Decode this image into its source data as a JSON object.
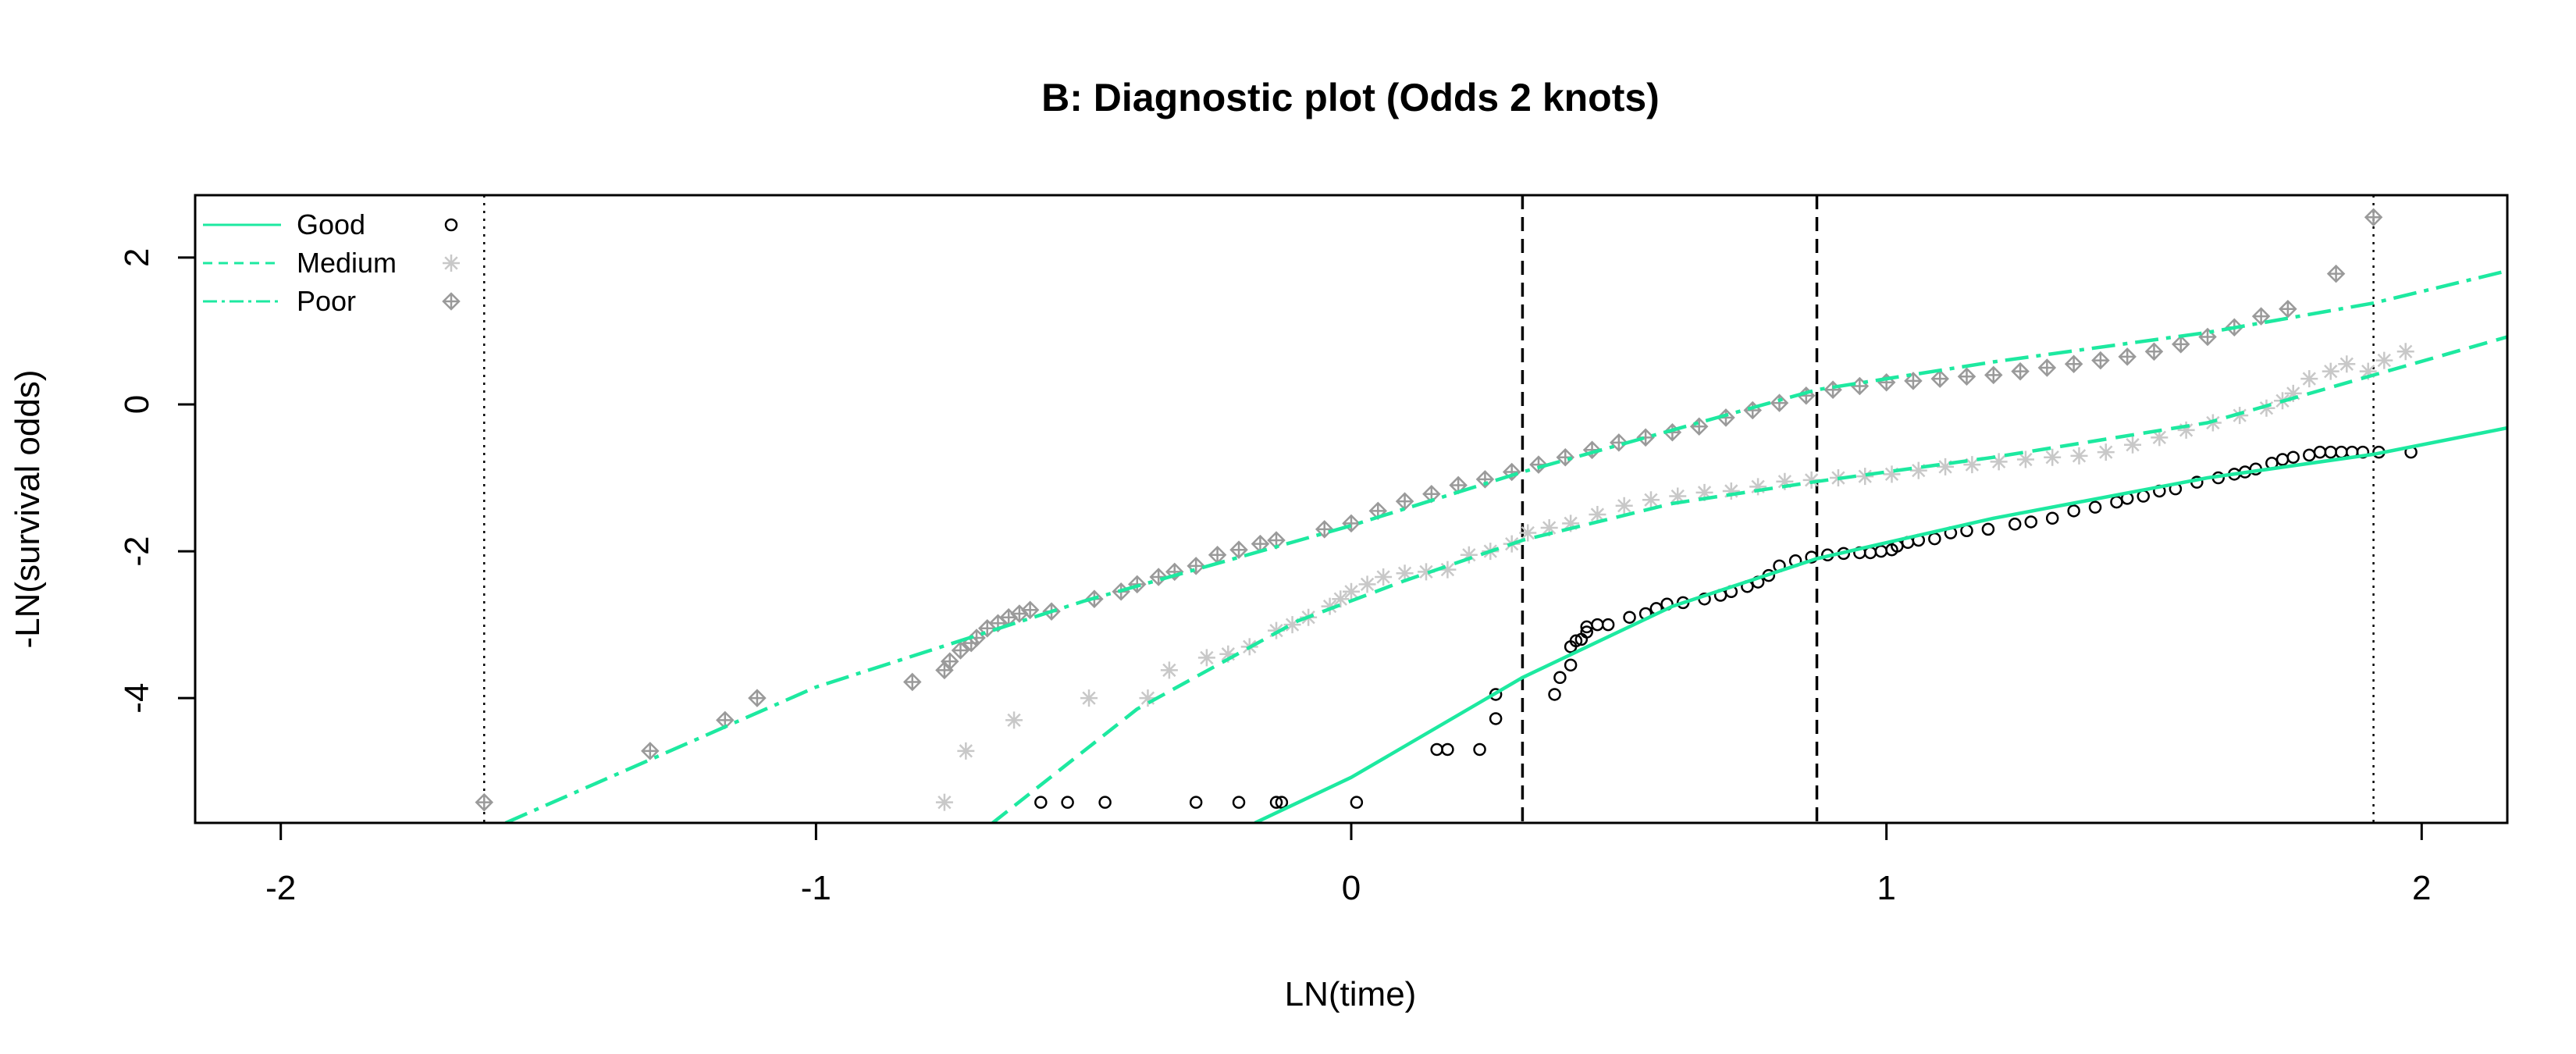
{
  "chart_data": {
    "type": "scatter",
    "title": "B: Diagnostic plot (Odds 2 knots)",
    "xlabel": "LN(time)",
    "ylabel": "-LN(survival odds)",
    "xlim": [
      -2.16,
      2.16
    ],
    "ylim": [
      -5.7,
      2.85
    ],
    "x_ticks": [
      -2,
      -1,
      0,
      1,
      2
    ],
    "y_ticks": [
      -4,
      -2,
      0,
      2
    ],
    "grid": false,
    "legend_position": "top-left",
    "curve_color": "#1de9a0",
    "knots_dashed": [
      0.32,
      0.87
    ],
    "bounds_dotted": [
      -1.62,
      1.91
    ],
    "series": [
      {
        "name": "Good",
        "line_style": "solid",
        "marker": "circle",
        "marker_color": "#000000",
        "curve": [
          [
            -0.18,
            -5.7
          ],
          [
            0,
            -5.08
          ],
          [
            0.32,
            -3.72
          ],
          [
            0.6,
            -2.75
          ],
          [
            0.87,
            -2.1
          ],
          [
            1.2,
            -1.55
          ],
          [
            1.6,
            -1.0
          ],
          [
            1.91,
            -0.68
          ],
          [
            2.16,
            -0.32
          ]
        ],
        "points": [
          [
            -0.58,
            -5.42
          ],
          [
            -0.53,
            -5.42
          ],
          [
            -0.46,
            -5.42
          ],
          [
            -0.29,
            -5.42
          ],
          [
            -0.21,
            -5.42
          ],
          [
            -0.14,
            -5.42
          ],
          [
            -0.13,
            -5.42
          ],
          [
            0.01,
            -5.42
          ],
          [
            0.16,
            -4.7
          ],
          [
            0.18,
            -4.7
          ],
          [
            0.24,
            -4.7
          ],
          [
            0.27,
            -4.28
          ],
          [
            0.27,
            -3.95
          ],
          [
            0.38,
            -3.95
          ],
          [
            0.39,
            -3.72
          ],
          [
            0.41,
            -3.55
          ],
          [
            0.41,
            -3.3
          ],
          [
            0.42,
            -3.22
          ],
          [
            0.43,
            -3.2
          ],
          [
            0.44,
            -3.1
          ],
          [
            0.44,
            -3.03
          ],
          [
            0.46,
            -3.0
          ],
          [
            0.48,
            -3.0
          ],
          [
            0.52,
            -2.9
          ],
          [
            0.55,
            -2.85
          ],
          [
            0.57,
            -2.78
          ],
          [
            0.59,
            -2.72
          ],
          [
            0.62,
            -2.7
          ],
          [
            0.66,
            -2.65
          ],
          [
            0.69,
            -2.6
          ],
          [
            0.71,
            -2.55
          ],
          [
            0.74,
            -2.48
          ],
          [
            0.76,
            -2.42
          ],
          [
            0.78,
            -2.33
          ],
          [
            0.8,
            -2.2
          ],
          [
            0.83,
            -2.13
          ],
          [
            0.86,
            -2.08
          ],
          [
            0.89,
            -2.05
          ],
          [
            0.92,
            -2.03
          ],
          [
            0.95,
            -2.02
          ],
          [
            0.97,
            -2.02
          ],
          [
            0.99,
            -2.0
          ],
          [
            1.01,
            -1.98
          ],
          [
            1.02,
            -1.93
          ],
          [
            1.04,
            -1.88
          ],
          [
            1.06,
            -1.85
          ],
          [
            1.09,
            -1.83
          ],
          [
            1.12,
            -1.75
          ],
          [
            1.15,
            -1.72
          ],
          [
            1.19,
            -1.7
          ],
          [
            1.24,
            -1.63
          ],
          [
            1.27,
            -1.6
          ],
          [
            1.31,
            -1.55
          ],
          [
            1.35,
            -1.45
          ],
          [
            1.39,
            -1.4
          ],
          [
            1.43,
            -1.33
          ],
          [
            1.45,
            -1.28
          ],
          [
            1.48,
            -1.25
          ],
          [
            1.51,
            -1.18
          ],
          [
            1.54,
            -1.15
          ],
          [
            1.58,
            -1.06
          ],
          [
            1.62,
            -1.0
          ],
          [
            1.65,
            -0.95
          ],
          [
            1.67,
            -0.92
          ],
          [
            1.69,
            -0.88
          ],
          [
            1.72,
            -0.8
          ],
          [
            1.74,
            -0.75
          ],
          [
            1.76,
            -0.72
          ],
          [
            1.79,
            -0.69
          ],
          [
            1.81,
            -0.65
          ],
          [
            1.83,
            -0.65
          ],
          [
            1.85,
            -0.65
          ],
          [
            1.87,
            -0.65
          ],
          [
            1.89,
            -0.65
          ],
          [
            1.92,
            -0.65
          ],
          [
            1.98,
            -0.65
          ]
        ]
      },
      {
        "name": "Medium",
        "line_style": "dashed",
        "marker": "asterisk",
        "marker_color": "#c8c8c8",
        "curve": [
          [
            -0.67,
            -5.7
          ],
          [
            -0.4,
            -4.15
          ],
          [
            -0.1,
            -2.95
          ],
          [
            0.1,
            -2.4
          ],
          [
            0.32,
            -1.85
          ],
          [
            0.6,
            -1.35
          ],
          [
            0.87,
            -1.05
          ],
          [
            1.2,
            -0.72
          ],
          [
            1.6,
            -0.25
          ],
          [
            1.91,
            0.4
          ],
          [
            2.16,
            0.92
          ]
        ],
        "points": [
          [
            -0.76,
            -5.42
          ],
          [
            -0.72,
            -4.72
          ],
          [
            -0.63,
            -4.3
          ],
          [
            -0.49,
            -4.0
          ],
          [
            -0.38,
            -4.0
          ],
          [
            -0.34,
            -3.62
          ],
          [
            -0.27,
            -3.45
          ],
          [
            -0.23,
            -3.4
          ],
          [
            -0.19,
            -3.3
          ],
          [
            -0.14,
            -3.08
          ],
          [
            -0.11,
            -3.0
          ],
          [
            -0.08,
            -2.9
          ],
          [
            -0.04,
            -2.75
          ],
          [
            -0.02,
            -2.65
          ],
          [
            0.0,
            -2.55
          ],
          [
            0.03,
            -2.45
          ],
          [
            0.06,
            -2.35
          ],
          [
            0.1,
            -2.3
          ],
          [
            0.14,
            -2.28
          ],
          [
            0.18,
            -2.25
          ],
          [
            0.22,
            -2.05
          ],
          [
            0.26,
            -2.0
          ],
          [
            0.3,
            -1.9
          ],
          [
            0.33,
            -1.75
          ],
          [
            0.37,
            -1.68
          ],
          [
            0.41,
            -1.62
          ],
          [
            0.46,
            -1.5
          ],
          [
            0.51,
            -1.38
          ],
          [
            0.56,
            -1.3
          ],
          [
            0.61,
            -1.25
          ],
          [
            0.66,
            -1.2
          ],
          [
            0.71,
            -1.18
          ],
          [
            0.76,
            -1.12
          ],
          [
            0.81,
            -1.05
          ],
          [
            0.86,
            -1.03
          ],
          [
            0.91,
            -1.0
          ],
          [
            0.96,
            -0.98
          ],
          [
            1.01,
            -0.95
          ],
          [
            1.06,
            -0.9
          ],
          [
            1.11,
            -0.85
          ],
          [
            1.16,
            -0.82
          ],
          [
            1.21,
            -0.78
          ],
          [
            1.26,
            -0.75
          ],
          [
            1.31,
            -0.72
          ],
          [
            1.36,
            -0.7
          ],
          [
            1.41,
            -0.65
          ],
          [
            1.46,
            -0.55
          ],
          [
            1.51,
            -0.45
          ],
          [
            1.56,
            -0.35
          ],
          [
            1.61,
            -0.25
          ],
          [
            1.66,
            -0.15
          ],
          [
            1.71,
            -0.05
          ],
          [
            1.74,
            0.05
          ],
          [
            1.76,
            0.15
          ],
          [
            1.79,
            0.35
          ],
          [
            1.83,
            0.45
          ],
          [
            1.86,
            0.55
          ],
          [
            1.9,
            0.45
          ],
          [
            1.93,
            0.6
          ],
          [
            1.97,
            0.72
          ]
        ]
      },
      {
        "name": "Poor",
        "line_style": "dashdot",
        "marker": "diamond-plus",
        "marker_color": "#9a9a9a",
        "curve": [
          [
            -1.58,
            -5.7
          ],
          [
            -1.0,
            -3.85
          ],
          [
            -0.5,
            -2.68
          ],
          [
            0.0,
            -1.65
          ],
          [
            0.32,
            -0.92
          ],
          [
            0.6,
            -0.35
          ],
          [
            0.87,
            0.2
          ],
          [
            1.2,
            0.58
          ],
          [
            1.6,
            0.98
          ],
          [
            1.91,
            1.38
          ],
          [
            2.16,
            1.82
          ]
        ],
        "points": [
          [
            -1.62,
            -5.42
          ],
          [
            -1.31,
            -4.72
          ],
          [
            -1.17,
            -4.3
          ],
          [
            -1.11,
            -4.0
          ],
          [
            -0.82,
            -3.78
          ],
          [
            -0.76,
            -3.62
          ],
          [
            -0.75,
            -3.5
          ],
          [
            -0.73,
            -3.35
          ],
          [
            -0.71,
            -3.25
          ],
          [
            -0.7,
            -3.18
          ],
          [
            -0.68,
            -3.05
          ],
          [
            -0.66,
            -2.98
          ],
          [
            -0.64,
            -2.9
          ],
          [
            -0.62,
            -2.85
          ],
          [
            -0.6,
            -2.8
          ],
          [
            -0.56,
            -2.82
          ],
          [
            -0.48,
            -2.65
          ],
          [
            -0.43,
            -2.55
          ],
          [
            -0.4,
            -2.45
          ],
          [
            -0.36,
            -2.35
          ],
          [
            -0.33,
            -2.28
          ],
          [
            -0.29,
            -2.2
          ],
          [
            -0.25,
            -2.05
          ],
          [
            -0.21,
            -1.98
          ],
          [
            -0.17,
            -1.9
          ],
          [
            -0.14,
            -1.85
          ],
          [
            -0.05,
            -1.7
          ],
          [
            0.0,
            -1.62
          ],
          [
            0.05,
            -1.45
          ],
          [
            0.1,
            -1.32
          ],
          [
            0.15,
            -1.22
          ],
          [
            0.2,
            -1.1
          ],
          [
            0.25,
            -1.02
          ],
          [
            0.3,
            -0.92
          ],
          [
            0.35,
            -0.82
          ],
          [
            0.4,
            -0.72
          ],
          [
            0.45,
            -0.62
          ],
          [
            0.5,
            -0.52
          ],
          [
            0.55,
            -0.45
          ],
          [
            0.6,
            -0.38
          ],
          [
            0.65,
            -0.3
          ],
          [
            0.7,
            -0.18
          ],
          [
            0.75,
            -0.08
          ],
          [
            0.8,
            0.02
          ],
          [
            0.85,
            0.12
          ],
          [
            0.9,
            0.2
          ],
          [
            0.95,
            0.25
          ],
          [
            1.0,
            0.3
          ],
          [
            1.05,
            0.32
          ],
          [
            1.1,
            0.35
          ],
          [
            1.15,
            0.38
          ],
          [
            1.2,
            0.4
          ],
          [
            1.25,
            0.45
          ],
          [
            1.3,
            0.5
          ],
          [
            1.35,
            0.55
          ],
          [
            1.4,
            0.6
          ],
          [
            1.45,
            0.65
          ],
          [
            1.5,
            0.72
          ],
          [
            1.55,
            0.82
          ],
          [
            1.6,
            0.92
          ],
          [
            1.65,
            1.05
          ],
          [
            1.7,
            1.2
          ],
          [
            1.75,
            1.3
          ],
          [
            1.84,
            1.78
          ],
          [
            1.91,
            2.55
          ]
        ]
      }
    ]
  }
}
